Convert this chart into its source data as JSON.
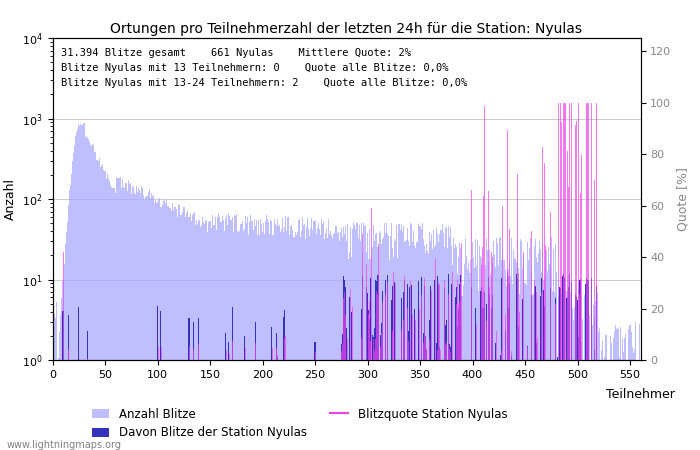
{
  "title": "Ortungen pro Teilnehmerzahl der letzten 24h für die Station: Nyulas",
  "xlabel": "Teilnehmer",
  "ylabel_left": "Anzahl",
  "ylabel_right": "Quote [%]",
  "annotation_lines": [
    "31.394 Blitze gesamt    661 Nyulas    Mittlere Quote: 2%",
    "Blitze Nyulas mit 13 Teilnehmern: 0    Quote alle Blitze: 0,0%",
    "Blitze Nyulas mit 13-24 Teilnehmern: 2    Quote alle Blitze: 0,0%"
  ],
  "xlim": [
    0,
    560
  ],
  "ylim_left": [
    1,
    10000
  ],
  "ylim_right": [
    0,
    125
  ],
  "yticks_right": [
    0,
    20,
    40,
    60,
    80,
    100,
    120
  ],
  "bar_color_total": "#aaaaff",
  "bar_color_station": "#3333bb",
  "line_color_quote": "#ee44ee",
  "website": "www.lightningmaps.org",
  "legend_entries": [
    "Anzahl Blitze",
    "Davon Blitze der Station Nyulas",
    "Blitzquote Station Nyulas"
  ],
  "max_participants": 560,
  "xticks": [
    0,
    50,
    100,
    150,
    200,
    250,
    300,
    350,
    400,
    450,
    500,
    550
  ]
}
